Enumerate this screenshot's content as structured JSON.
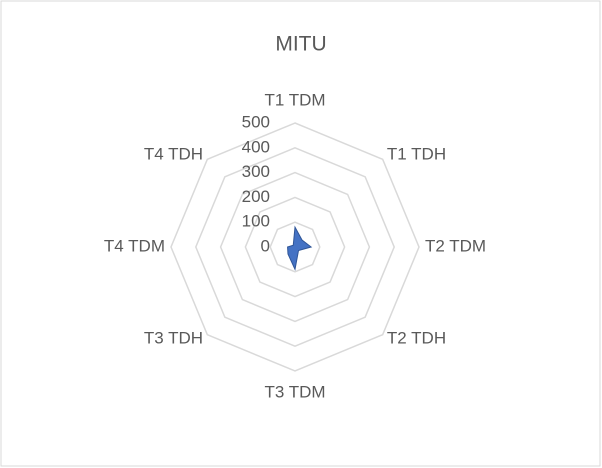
{
  "chart_data": {
    "type": "radar",
    "title": "MITU",
    "categories": [
      "T1 TDM",
      "T1 TDH",
      "T2 TDM",
      "T2 TDH",
      "T3 TDM",
      "T3 TDH",
      "T4 TDM",
      "T4 TDH"
    ],
    "series": [
      {
        "name": "MITU",
        "color": "#4472c4",
        "values": [
          80,
          40,
          65,
          20,
          90,
          40,
          30,
          10
        ]
      }
    ],
    "ylim": [
      0,
      500
    ],
    "yticks": [
      0,
      100,
      200,
      300,
      400,
      500
    ],
    "grid": true
  }
}
